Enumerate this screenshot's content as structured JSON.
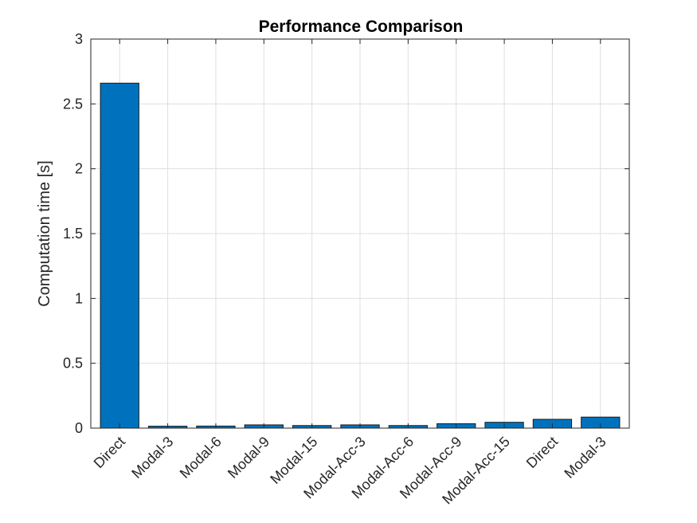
{
  "chart_data": {
    "type": "bar",
    "title": "Performance Comparison",
    "xlabel": "",
    "ylabel": "Computation time [s]",
    "categories": [
      "Direct",
      "Modal-3",
      "Modal-6",
      "Modal-9",
      "Modal-15",
      "Modal-Acc-3",
      "Modal-Acc-6",
      "Modal-Acc-9",
      "Modal-Acc-15",
      "Direct",
      "Modal-3"
    ],
    "values": [
      2.66,
      0.015,
      0.016,
      0.025,
      0.02,
      0.025,
      0.02,
      0.034,
      0.045,
      0.068,
      0.085
    ],
    "ylim": [
      0,
      3
    ],
    "yticks": [
      0,
      0.5,
      1,
      1.5,
      2,
      2.5,
      3
    ],
    "ytick_labels": [
      "0",
      "0.5",
      "1",
      "1.5",
      "2",
      "2.5",
      "3"
    ],
    "grid": true,
    "bar_color": "#0072BD"
  }
}
